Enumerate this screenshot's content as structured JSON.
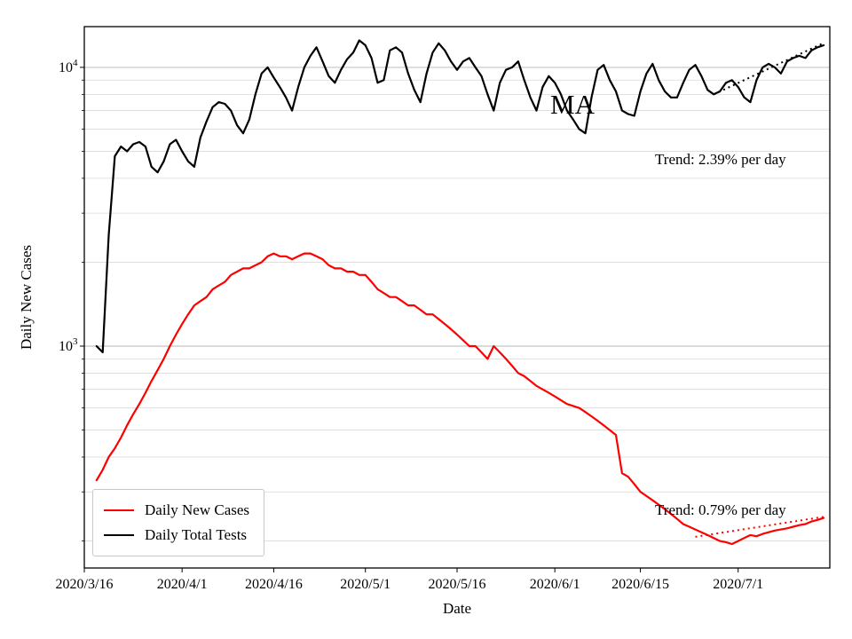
{
  "chart_data": {
    "type": "line",
    "title": "",
    "xlabel": "Date",
    "ylabel": "Daily New Cases",
    "yscale": "log",
    "grid": "horizontal-both-major-and-minor",
    "legend_position": "lower left",
    "ylim": [
      160,
      14000
    ],
    "xlim_days": [
      0,
      122
    ],
    "x_ticks": [
      {
        "day": 0,
        "label": "2020/3/16"
      },
      {
        "day": 16,
        "label": "2020/4/1"
      },
      {
        "day": 31,
        "label": "2020/4/16"
      },
      {
        "day": 46,
        "label": "2020/5/1"
      },
      {
        "day": 61,
        "label": "2020/5/16"
      },
      {
        "day": 77,
        "label": "2020/6/1"
      },
      {
        "day": 91,
        "label": "2020/6/15"
      },
      {
        "day": 107,
        "label": "2020/7/1"
      }
    ],
    "y_ticks": [
      {
        "value": 1000,
        "base": "10",
        "exp": "3"
      },
      {
        "value": 10000,
        "base": "10",
        "exp": "4"
      }
    ],
    "series": [
      {
        "name": "Daily New Cases",
        "color": "#ff0000",
        "start_day": 2,
        "values": [
          330,
          360,
          400,
          430,
          470,
          520,
          570,
          620,
          680,
          750,
          820,
          900,
          1000,
          1100,
          1200,
          1300,
          1400,
          1450,
          1500,
          1600,
          1650,
          1700,
          1800,
          1850,
          1900,
          1900,
          1950,
          2000,
          2100,
          2150,
          2100,
          2100,
          2050,
          2100,
          2150,
          2150,
          2100,
          2050,
          1950,
          1900,
          1900,
          1850,
          1850,
          1800,
          1800,
          1700,
          1600,
          1550,
          1500,
          1500,
          1450,
          1400,
          1400,
          1350,
          1300,
          1300,
          1250,
          1200,
          1150,
          1100,
          1050,
          1000,
          1000,
          950,
          900,
          1000,
          950,
          900,
          850,
          800,
          780,
          750,
          720,
          700,
          680,
          660,
          640,
          620,
          610,
          600,
          580,
          560,
          540,
          520,
          500,
          480,
          350,
          340,
          320,
          300,
          290,
          280,
          270,
          260,
          250,
          240,
          230,
          225,
          220,
          215,
          210,
          205,
          200,
          198,
          195,
          200,
          205,
          210,
          208,
          212,
          215,
          218,
          220,
          222,
          225,
          228,
          230,
          235,
          238,
          242
        ]
      },
      {
        "name": "Daily Total Tests",
        "color": "#000000",
        "start_day": 2,
        "values": [
          1000,
          950,
          2500,
          4800,
          5200,
          5000,
          5300,
          5400,
          5200,
          4400,
          4200,
          4600,
          5300,
          5500,
          5000,
          4600,
          4400,
          5600,
          6400,
          7200,
          7500,
          7400,
          7000,
          6200,
          5800,
          6500,
          8000,
          9500,
          10000,
          9200,
          8500,
          7800,
          7000,
          8500,
          10000,
          11000,
          11800,
          10500,
          9300,
          8800,
          9800,
          10700,
          11300,
          12500,
          12000,
          10800,
          8800,
          9000,
          11500,
          11800,
          11300,
          9500,
          8300,
          7500,
          9500,
          11300,
          12200,
          11500,
          10500,
          9800,
          10500,
          10800,
          10000,
          9300,
          8000,
          7000,
          8800,
          9800,
          10000,
          10500,
          9000,
          7800,
          7000,
          8500,
          9300,
          8800,
          8000,
          7000,
          6500,
          6000,
          5800,
          7800,
          9800,
          10200,
          9000,
          8200,
          7000,
          6800,
          6700,
          8200,
          9500,
          10300,
          9000,
          8200,
          7800,
          7800,
          8800,
          9800,
          10200,
          9300,
          8300,
          8000,
          8200,
          8800,
          9000,
          8500,
          7800,
          7500,
          9000,
          10000,
          10300,
          10000,
          9500,
          10500,
          10800,
          11000,
          10800,
          11500,
          11800,
          12000
        ]
      }
    ],
    "trend_lines": [
      {
        "series": "Daily Total Tests",
        "color": "#000000",
        "rate_percent_per_day": 2.39,
        "start_day": 103,
        "start_value": 8000,
        "end_day": 121
      },
      {
        "series": "Daily New Cases",
        "color": "#ff0000",
        "rate_percent_per_day": 0.79,
        "start_day": 100,
        "start_value": 207,
        "end_day": 121
      }
    ],
    "annotations": [
      {
        "id": "state-label",
        "text": "MA"
      },
      {
        "id": "tests-trend",
        "text": "Trend: 2.39% per day"
      },
      {
        "id": "cases-trend",
        "text": "Trend: 0.79% per day"
      }
    ],
    "colors": {
      "grid_major": "#b5b5b5",
      "grid_minor": "#d9d9d9",
      "spine": "#000000"
    }
  }
}
